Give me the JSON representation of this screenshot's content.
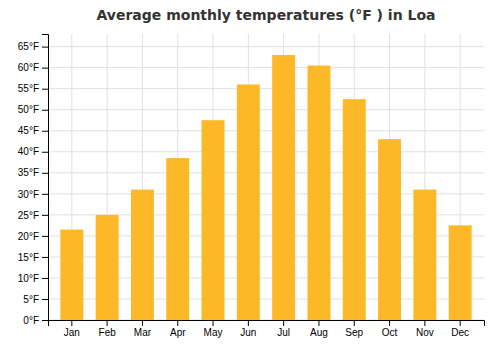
{
  "chart_data": {
    "type": "bar",
    "title": "Average monthly temperatures (°F ) in Loa",
    "categories": [
      "Jan",
      "Feb",
      "Mar",
      "Apr",
      "May",
      "Jun",
      "Jul",
      "Aug",
      "Sep",
      "Oct",
      "Nov",
      "Dec"
    ],
    "values": [
      21.5,
      25.0,
      31.0,
      38.5,
      47.5,
      56.0,
      63.0,
      60.5,
      52.5,
      43.0,
      31.0,
      22.5
    ],
    "color": "#FDB827",
    "ylim": [
      0,
      68
    ],
    "yticks": [
      {
        "value": 0,
        "label": "0°F"
      },
      {
        "value": 5,
        "label": "5°F"
      },
      {
        "value": 10,
        "label": "10°F"
      },
      {
        "value": 15,
        "label": "15°F"
      },
      {
        "value": 20,
        "label": "20°F"
      },
      {
        "value": 25,
        "label": "25°F"
      },
      {
        "value": 30,
        "label": "30°F"
      },
      {
        "value": 35,
        "label": "35°F"
      },
      {
        "value": 40,
        "label": "40°F"
      },
      {
        "value": 45,
        "label": "45°F"
      },
      {
        "value": 50,
        "label": "50°F"
      },
      {
        "value": 55,
        "label": "55°F"
      },
      {
        "value": 60,
        "label": "60°F"
      },
      {
        "value": 65,
        "label": "65°F"
      }
    ],
    "grid": true
  }
}
